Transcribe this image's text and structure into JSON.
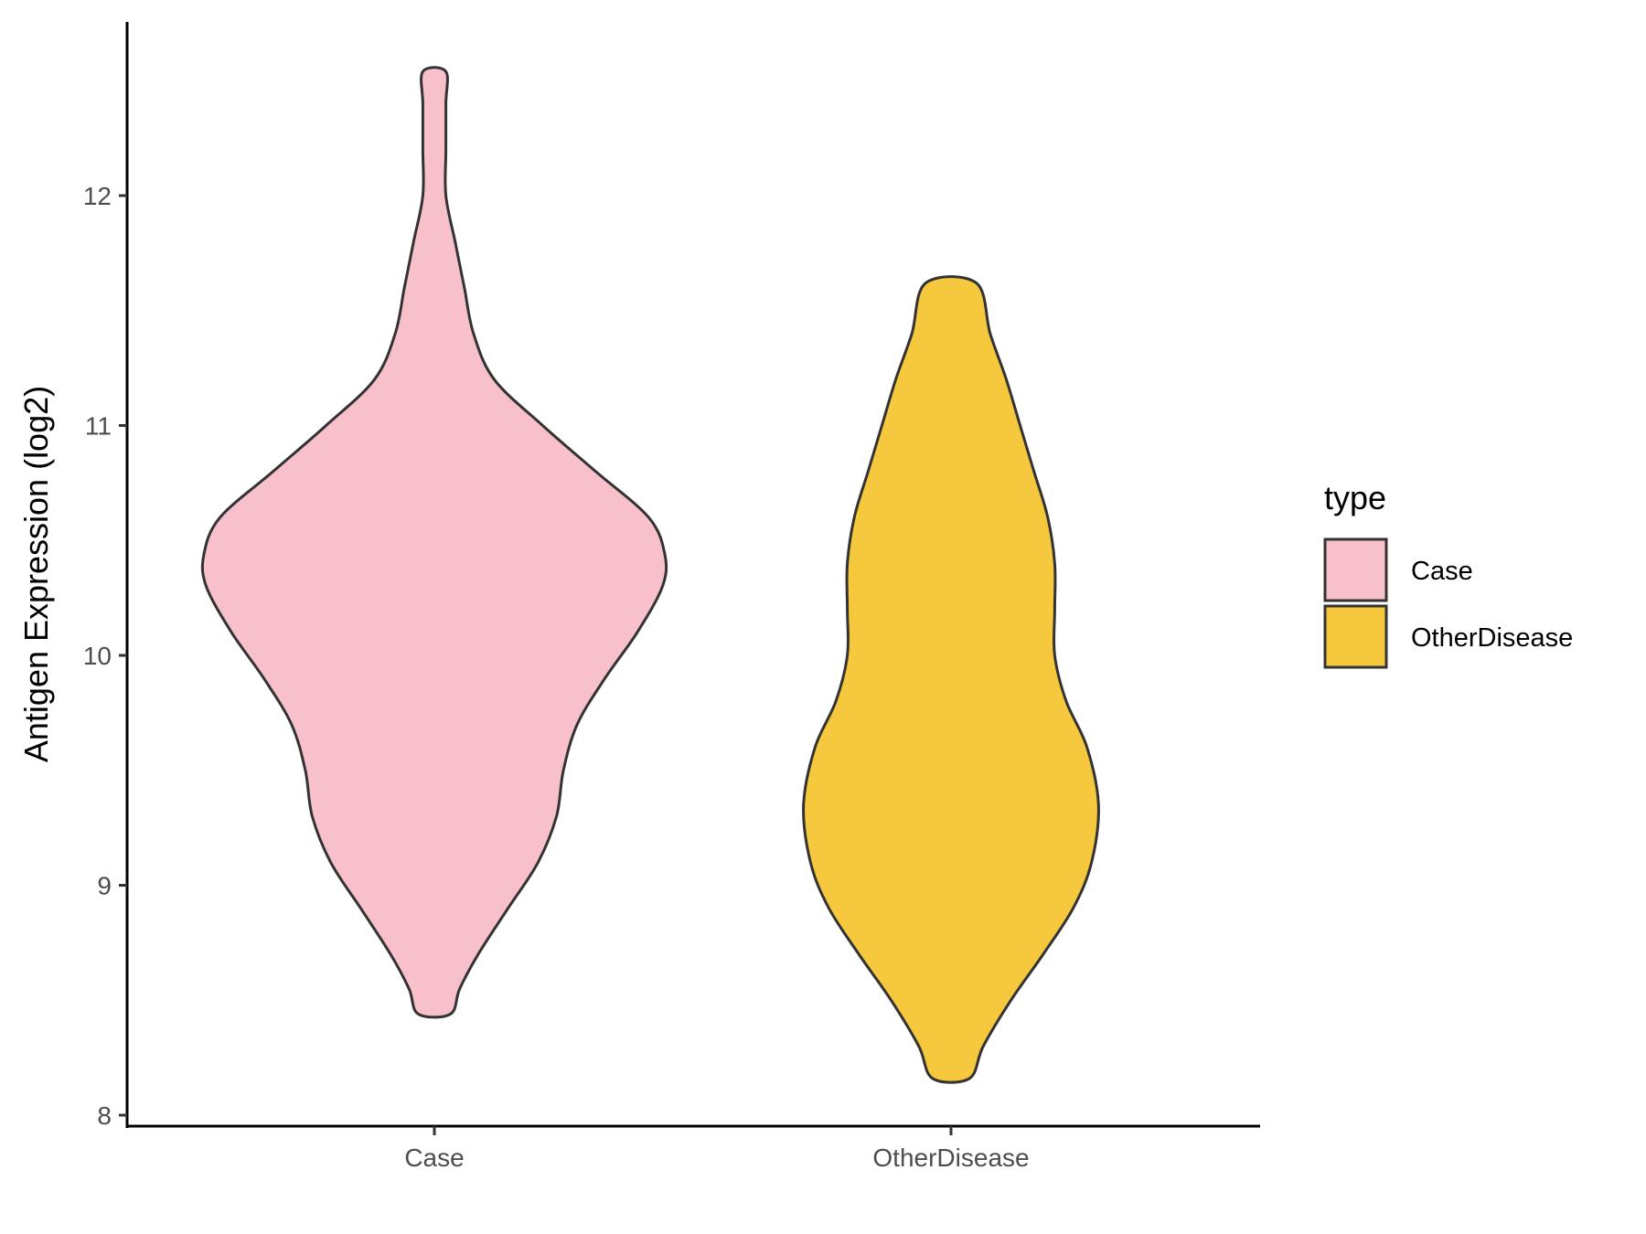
{
  "chart_data": {
    "type": "violin",
    "ylabel": "Antigen Expression (log2)",
    "xlabel": "",
    "ylim": [
      7.95,
      12.75
    ],
    "yticks": [
      8,
      9,
      10,
      11,
      12
    ],
    "ytick_labels": [
      "8",
      "9",
      "10",
      "11",
      "12"
    ],
    "categories": [
      "Case",
      "OtherDisease"
    ],
    "legend": {
      "title": "type",
      "placement": "right",
      "entries": [
        "Case",
        "OtherDisease"
      ]
    },
    "grid": false,
    "series": [
      {
        "name": "Case",
        "color": "#F8C0CB",
        "min": 8.44,
        "max": 12.54,
        "density_profile": [
          [
            8.44,
            0.07
          ],
          [
            8.55,
            0.11
          ],
          [
            8.7,
            0.19
          ],
          [
            8.9,
            0.32
          ],
          [
            9.1,
            0.45
          ],
          [
            9.3,
            0.53
          ],
          [
            9.5,
            0.56
          ],
          [
            9.7,
            0.62
          ],
          [
            9.9,
            0.74
          ],
          [
            10.1,
            0.88
          ],
          [
            10.3,
            0.99
          ],
          [
            10.44,
            1.0
          ],
          [
            10.6,
            0.93
          ],
          [
            10.8,
            0.7
          ],
          [
            11.0,
            0.47
          ],
          [
            11.2,
            0.26
          ],
          [
            11.4,
            0.17
          ],
          [
            11.6,
            0.13
          ],
          [
            11.8,
            0.09
          ],
          [
            12.0,
            0.05
          ],
          [
            12.2,
            0.05
          ],
          [
            12.4,
            0.05
          ],
          [
            12.54,
            0.05
          ]
        ]
      },
      {
        "name": "OtherDisease",
        "color": "#F6C83E",
        "min": 8.16,
        "max": 11.62,
        "density_profile": [
          [
            8.16,
            0.08
          ],
          [
            8.3,
            0.14
          ],
          [
            8.5,
            0.26
          ],
          [
            8.7,
            0.4
          ],
          [
            8.9,
            0.53
          ],
          [
            9.1,
            0.61
          ],
          [
            9.35,
            0.64
          ],
          [
            9.6,
            0.59
          ],
          [
            9.8,
            0.5
          ],
          [
            10.0,
            0.45
          ],
          [
            10.2,
            0.45
          ],
          [
            10.4,
            0.45
          ],
          [
            10.6,
            0.42
          ],
          [
            10.8,
            0.36
          ],
          [
            11.0,
            0.3
          ],
          [
            11.2,
            0.24
          ],
          [
            11.4,
            0.17
          ],
          [
            11.62,
            0.11
          ]
        ]
      }
    ]
  }
}
